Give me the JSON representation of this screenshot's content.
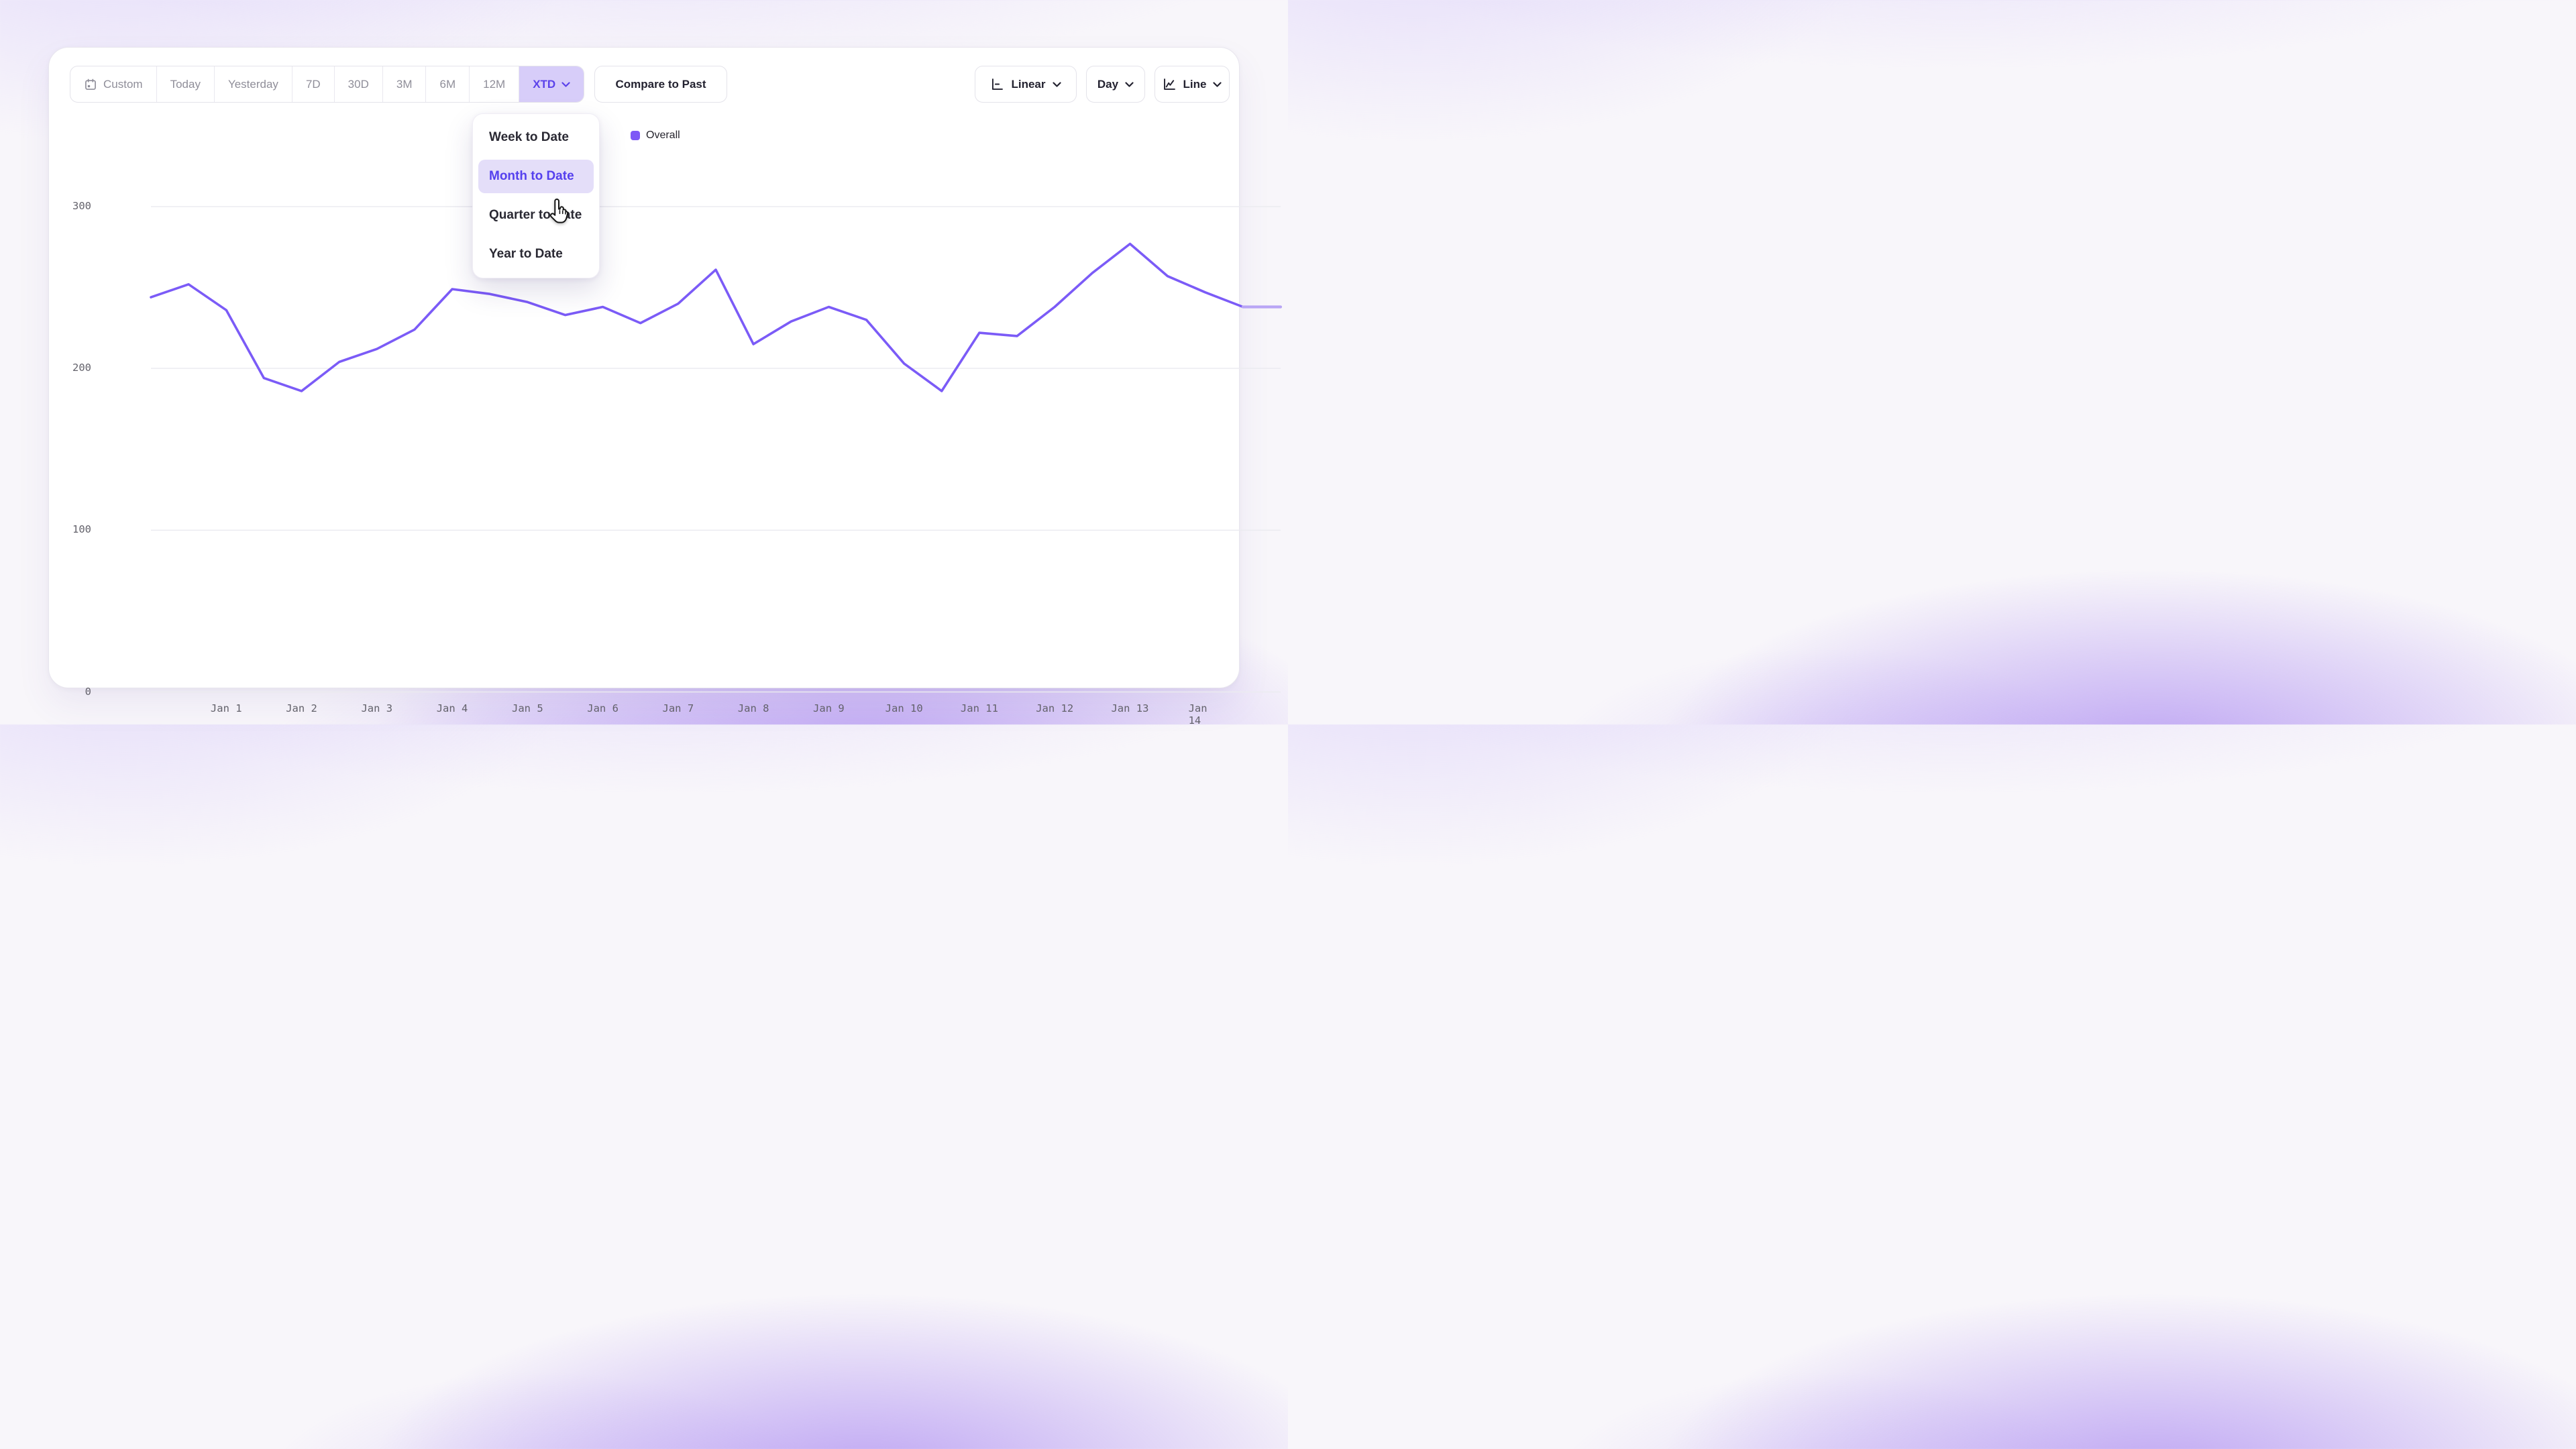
{
  "toolbar": {
    "range": {
      "items": [
        {
          "label": "Custom",
          "icon": "calendar",
          "selected": false
        },
        {
          "label": "Today",
          "selected": false
        },
        {
          "label": "Yesterday",
          "selected": false
        },
        {
          "label": "7D",
          "selected": false
        },
        {
          "label": "30D",
          "selected": false
        },
        {
          "label": "3M",
          "selected": false
        },
        {
          "label": "6M",
          "selected": false
        },
        {
          "label": "12M",
          "selected": false
        },
        {
          "label": "XTD",
          "selected": true,
          "has_chevron": true
        }
      ]
    },
    "compare_button": {
      "label": "Compare to Past"
    },
    "scale_select": {
      "label": "Linear",
      "icon": "axis-linear"
    },
    "granularity_select": {
      "label": "Day"
    },
    "chart_type_select": {
      "label": "Line",
      "icon": "line-chart"
    }
  },
  "dropdown": {
    "items": [
      {
        "label": "Week to Date",
        "highlighted": false
      },
      {
        "label": "Month to Date",
        "highlighted": true
      },
      {
        "label": "Quarter to Date",
        "highlighted": false
      },
      {
        "label": "Year to Date",
        "highlighted": false
      }
    ]
  },
  "legend": {
    "series_label": "Overall",
    "swatch_color": "#7e58f6"
  },
  "chart_data": {
    "type": "line",
    "title": "",
    "xlabel": "",
    "ylabel": "",
    "x_unit": "half-day steps from Dec 31 to Jan 15",
    "x_range_days": [
      0,
      15
    ],
    "x_tick_labels": [
      "Jan 1",
      "Jan 2",
      "Jan 3",
      "Jan 4",
      "Jan 5",
      "Jan 6",
      "Jan 7",
      "Jan 8",
      "Jan 9",
      "Jan 10",
      "Jan 11",
      "Jan 12",
      "Jan 13",
      "Jan 14"
    ],
    "y_ticks": [
      0,
      100,
      200,
      300
    ],
    "ylim": [
      0,
      300
    ],
    "grid": true,
    "legend_position": "top",
    "series": [
      {
        "name": "Overall",
        "color": "#7b5bf7",
        "values": [
          244,
          252,
          236,
          194,
          186,
          204,
          212,
          224,
          249,
          246,
          241,
          233,
          238,
          228,
          240,
          261,
          215,
          229,
          238,
          230,
          203,
          186,
          222,
          220,
          238,
          259,
          277,
          257,
          247,
          238,
          238
        ]
      }
    ],
    "partial_tail": {
      "from_index": 29,
      "color": "#b9a5f5"
    }
  },
  "colors": {
    "accent": "#5b42ea",
    "selected_range_bg": "#d7cdf9",
    "dropdown_highlight_bg": "#e4def9",
    "grid_line": "#ebebf0",
    "axis_text": "#63626b",
    "muted_text": "#8f8e99",
    "dark_text": "#232230",
    "background_glow": "#9268ee"
  }
}
